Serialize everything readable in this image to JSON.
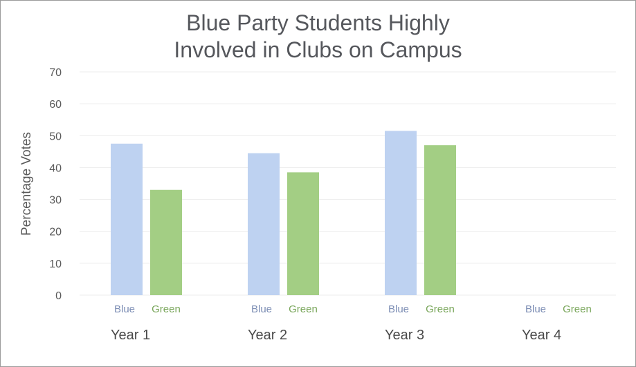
{
  "chart_data": {
    "type": "bar",
    "title_lines": [
      "Blue Party Students Highly",
      "Involved in Clubs on Campus"
    ],
    "xlabel": "",
    "ylabel": "Percentage Votes",
    "ylim": [
      0,
      70
    ],
    "yticks": [
      "0",
      "10",
      "20",
      "30",
      "40",
      "50",
      "60",
      "70"
    ],
    "grid": true,
    "categories": [
      "Year 1",
      "Year 2",
      "Year 3",
      "Year 4"
    ],
    "series": [
      {
        "name": "Blue",
        "color": "#bed2f1",
        "label_color": "#7c8db4",
        "values": [
          47.5,
          44.5,
          51.5,
          0
        ]
      },
      {
        "name": "Green",
        "color": "#a3ce84",
        "label_color": "#79a65a",
        "values": [
          33,
          38.5,
          47,
          0
        ]
      }
    ]
  }
}
